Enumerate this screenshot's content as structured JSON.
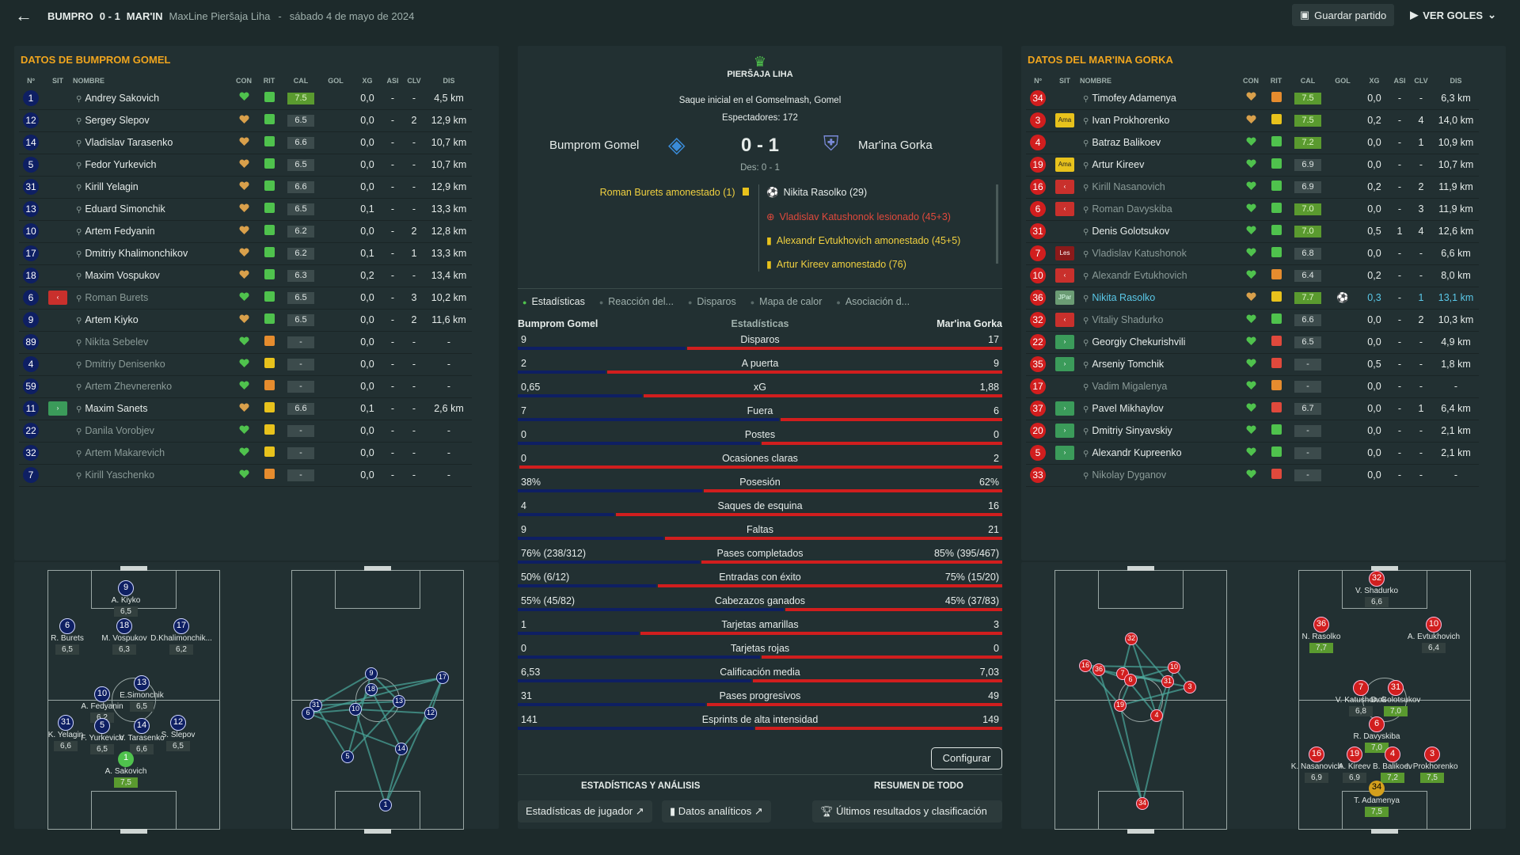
{
  "topbar": {
    "home": "BUMPRO",
    "score": "0 - 1",
    "away": "MAR'IN",
    "league": "MaxLine Pieršaja Liha",
    "sep": "-",
    "date": "sábado 4 de mayo de 2024",
    "save": "Guardar partido",
    "goals": "VER GOLES"
  },
  "left": {
    "title": "DATOS DE BUMPROM GOMEL",
    "cols": [
      "Nº",
      "SIT",
      "NOMBRE",
      "CON",
      "RIT",
      "CAL",
      "GOL",
      "XG",
      "ASI",
      "CLV",
      "DIS"
    ],
    "players": [
      {
        "n": "1",
        "sit": "",
        "name": "Andrey Sakovich",
        "rit": "g",
        "cal": "7.5",
        "calg": true,
        "gol": "",
        "xg": "0,0",
        "asi": "-",
        "clv": "-",
        "dis": "4,5 km",
        "sub": false
      },
      {
        "n": "12",
        "sit": "",
        "name": "Sergey Slepov",
        "rit": "g",
        "cal": "6.5",
        "gol": "",
        "xg": "0,0",
        "asi": "-",
        "clv": "2",
        "dis": "12,9 km",
        "sub": false
      },
      {
        "n": "14",
        "sit": "",
        "name": "Vladislav Tarasenko",
        "rit": "g",
        "cal": "6.6",
        "gol": "",
        "xg": "0,0",
        "asi": "-",
        "clv": "-",
        "dis": "10,7 km",
        "sub": false
      },
      {
        "n": "5",
        "sit": "",
        "name": "Fedor Yurkevich",
        "rit": "g",
        "cal": "6.5",
        "gol": "",
        "xg": "0,0",
        "asi": "-",
        "clv": "-",
        "dis": "10,7 km",
        "sub": false
      },
      {
        "n": "31",
        "sit": "",
        "name": "Kirill Yelagin",
        "rit": "g",
        "cal": "6.6",
        "gol": "",
        "xg": "0,0",
        "asi": "-",
        "clv": "-",
        "dis": "12,9 km",
        "sub": false
      },
      {
        "n": "13",
        "sit": "",
        "name": "Eduard Simonchik",
        "rit": "g",
        "cal": "6.5",
        "gol": "",
        "xg": "0,1",
        "asi": "-",
        "clv": "-",
        "dis": "13,3 km",
        "sub": false
      },
      {
        "n": "10",
        "sit": "",
        "name": "Artem Fedyanin",
        "rit": "g",
        "cal": "6.2",
        "gol": "",
        "xg": "0,0",
        "asi": "-",
        "clv": "2",
        "dis": "12,8 km",
        "sub": false
      },
      {
        "n": "17",
        "sit": "",
        "name": "Dmitriy Khalimonchikov",
        "rit": "g",
        "cal": "6.2",
        "gol": "",
        "xg": "0,1",
        "asi": "-",
        "clv": "1",
        "dis": "13,3 km",
        "sub": false
      },
      {
        "n": "18",
        "sit": "",
        "name": "Maxim Vospukov",
        "rit": "g",
        "cal": "6.3",
        "gol": "",
        "xg": "0,2",
        "asi": "-",
        "clv": "-",
        "dis": "13,4 km",
        "sub": false
      },
      {
        "n": "6",
        "sit": "out",
        "name": "Roman Burets",
        "rit": "g",
        "cal": "6.5",
        "gol": "",
        "xg": "0,0",
        "asi": "-",
        "clv": "3",
        "dis": "10,2 km",
        "sub": true
      },
      {
        "n": "9",
        "sit": "",
        "name": "Artem Kiyko",
        "rit": "g",
        "cal": "6.5",
        "gol": "",
        "xg": "0,0",
        "asi": "-",
        "clv": "2",
        "dis": "11,6 km",
        "sub": false
      },
      {
        "n": "89",
        "sit": "",
        "name": "Nikita Sebelev",
        "rit": "o",
        "cal": "-",
        "gol": "",
        "xg": "0,0",
        "asi": "-",
        "clv": "-",
        "dis": "-",
        "sub": true
      },
      {
        "n": "4",
        "sit": "",
        "name": "Dmitriy Denisenko",
        "rit": "y",
        "cal": "-",
        "gol": "",
        "xg": "0,0",
        "asi": "-",
        "clv": "-",
        "dis": "-",
        "sub": true
      },
      {
        "n": "59",
        "sit": "",
        "name": "Artem Zhevnerenko",
        "rit": "o",
        "cal": "-",
        "gol": "",
        "xg": "0,0",
        "asi": "-",
        "clv": "-",
        "dis": "-",
        "sub": true
      },
      {
        "n": "11",
        "sit": "in",
        "name": "Maxim Sanets",
        "rit": "y",
        "cal": "6.6",
        "gol": "",
        "xg": "0,1",
        "asi": "-",
        "clv": "-",
        "dis": "2,6 km",
        "sub": false
      },
      {
        "n": "22",
        "sit": "",
        "name": "Danila Vorobjev",
        "rit": "y",
        "cal": "-",
        "gol": "",
        "xg": "0,0",
        "asi": "-",
        "clv": "-",
        "dis": "-",
        "sub": true
      },
      {
        "n": "32",
        "sit": "",
        "name": "Artem Makarevich",
        "rit": "y",
        "cal": "-",
        "gol": "",
        "xg": "0,0",
        "asi": "-",
        "clv": "-",
        "dis": "-",
        "sub": true
      },
      {
        "n": "7",
        "sit": "",
        "name": "Kirill Yaschenko",
        "rit": "o",
        "cal": "-",
        "gol": "",
        "xg": "0,0",
        "asi": "-",
        "clv": "-",
        "dis": "-",
        "sub": true
      }
    ]
  },
  "right": {
    "title": "DATOS DEL MAR'INA GORKA",
    "players": [
      {
        "n": "34",
        "sit": "",
        "name": "Timofey Adamenya",
        "rit": "o",
        "cal": "7.5",
        "calg": true,
        "gol": "",
        "xg": "0,0",
        "asi": "-",
        "clv": "-",
        "dis": "6,3 km",
        "sub": false
      },
      {
        "n": "3",
        "sit": "ama",
        "name": "Ivan Prokhorenko",
        "rit": "y",
        "cal": "7.5",
        "calg": true,
        "gol": "",
        "xg": "0,2",
        "asi": "-",
        "clv": "4",
        "dis": "14,0 km",
        "sub": false
      },
      {
        "n": "4",
        "sit": "",
        "name": "Batraz Balikoev",
        "rit": "g",
        "cal": "7.2",
        "calg": true,
        "gol": "",
        "xg": "0,0",
        "asi": "-",
        "clv": "1",
        "dis": "10,9 km",
        "sub": false
      },
      {
        "n": "19",
        "sit": "ama",
        "name": "Artur Kireev",
        "rit": "g",
        "cal": "6.9",
        "gol": "",
        "xg": "0,0",
        "asi": "-",
        "clv": "-",
        "dis": "10,7 km",
        "sub": false
      },
      {
        "n": "16",
        "sit": "out",
        "name": "Kirill Nasanovich",
        "rit": "g",
        "cal": "6.9",
        "gol": "",
        "xg": "0,2",
        "asi": "-",
        "clv": "2",
        "dis": "11,9 km",
        "sub": true
      },
      {
        "n": "6",
        "sit": "out",
        "name": "Roman Davyskiba",
        "rit": "g",
        "cal": "7.0",
        "calg": true,
        "gol": "",
        "xg": "0,0",
        "asi": "-",
        "clv": "3",
        "dis": "11,9 km",
        "sub": true
      },
      {
        "n": "31",
        "sit": "",
        "name": "Denis Golotsukov",
        "rit": "g",
        "cal": "7.0",
        "calg": true,
        "gol": "",
        "xg": "0,5",
        "asi": "1",
        "clv": "4",
        "dis": "12,6 km",
        "sub": false
      },
      {
        "n": "7",
        "sit": "les",
        "name": "Vladislav Katushonok",
        "rit": "g",
        "cal": "6.8",
        "gol": "",
        "xg": "0,0",
        "asi": "-",
        "clv": "-",
        "dis": "6,6 km",
        "sub": true
      },
      {
        "n": "10",
        "sit": "out",
        "name": "Alexandr Evtukhovich",
        "rit": "o",
        "cal": "6.4",
        "gol": "",
        "xg": "0,2",
        "asi": "-",
        "clv": "-",
        "dis": "8,0 km",
        "sub": true
      },
      {
        "n": "36",
        "sit": "jpar",
        "name": "Nikita Rasolko",
        "rit": "y",
        "cal": "7.7",
        "calg": true,
        "gol": "⚽",
        "xg": "0,3",
        "asi": "-",
        "clv": "1",
        "dis": "13,1 km",
        "sub": false,
        "hl": true
      },
      {
        "n": "32",
        "sit": "out",
        "name": "Vitaliy Shadurko",
        "rit": "g",
        "cal": "6.6",
        "gol": "",
        "xg": "0,0",
        "asi": "-",
        "clv": "2",
        "dis": "10,3 km",
        "sub": true
      },
      {
        "n": "22",
        "sit": "in",
        "name": "Georgiy Chekurishvili",
        "rit": "r",
        "cal": "6.5",
        "gol": "",
        "xg": "0,0",
        "asi": "-",
        "clv": "-",
        "dis": "4,9 km",
        "sub": false
      },
      {
        "n": "35",
        "sit": "in",
        "name": "Arseniy Tomchik",
        "rit": "r",
        "cal": "-",
        "gol": "",
        "xg": "0,5",
        "asi": "-",
        "clv": "-",
        "dis": "1,8 km",
        "sub": false
      },
      {
        "n": "17",
        "sit": "",
        "name": "Vadim Migalenya",
        "rit": "o",
        "cal": "-",
        "gol": "",
        "xg": "0,0",
        "asi": "-",
        "clv": "-",
        "dis": "-",
        "sub": true
      },
      {
        "n": "37",
        "sit": "in",
        "name": "Pavel Mikhaylov",
        "rit": "r",
        "cal": "6.7",
        "gol": "",
        "xg": "0,0",
        "asi": "-",
        "clv": "1",
        "dis": "6,4 km",
        "sub": false
      },
      {
        "n": "20",
        "sit": "in",
        "name": "Dmitriy Sinyavskiy",
        "rit": "g",
        "cal": "-",
        "gol": "",
        "xg": "0,0",
        "asi": "-",
        "clv": "-",
        "dis": "2,1 km",
        "sub": false
      },
      {
        "n": "5",
        "sit": "in",
        "name": "Alexandr Kupreenko",
        "rit": "g",
        "cal": "-",
        "gol": "",
        "xg": "0,0",
        "asi": "-",
        "clv": "-",
        "dis": "2,1 km",
        "sub": false
      },
      {
        "n": "33",
        "sit": "",
        "name": "Nikolay Dyganov",
        "rit": "r",
        "cal": "-",
        "gol": "",
        "xg": "0,0",
        "asi": "-",
        "clv": "-",
        "dis": "-",
        "sub": true
      }
    ]
  },
  "match": {
    "league": "PIERŠAJA LIHA",
    "venue": "Saque inicial en el Gomselmash, Gomel",
    "spect": "Espectadores: 172",
    "home": "Bumprom Gomel",
    "away": "Mar'ina Gorka",
    "score": "0 - 1",
    "des": "Des: 0 - 1",
    "home_events": [
      "Roman Burets amonestado (1)"
    ],
    "away_events": [
      "Nikita Rasolko (29)",
      "Vladislav Katushonok lesionado (45+3)",
      "Alexandr Evtukhovich amonestado (45+5)",
      "Artur Kireev amonestado (76)"
    ]
  },
  "tabs": [
    "Estadísticas",
    "Reacción del...",
    "Disparos",
    "Mapa de calor",
    "Asociación d..."
  ],
  "stats_head": {
    "home": "Bumprom Gomel",
    "mid": "Estadísticas",
    "away": "Mar'ina Gorka"
  },
  "stats": [
    {
      "name": "Disparos",
      "h": "9",
      "a": "17",
      "hv": 9,
      "av": 17
    },
    {
      "name": "A puerta",
      "h": "2",
      "a": "9",
      "hv": 2,
      "av": 9
    },
    {
      "name": "xG",
      "h": "0,65",
      "a": "1,88",
      "hv": 0.65,
      "av": 1.88
    },
    {
      "name": "Fuera",
      "h": "7",
      "a": "6",
      "hv": 7,
      "av": 6
    },
    {
      "name": "Postes",
      "h": "0",
      "a": "0",
      "hv": 0,
      "av": 0
    },
    {
      "name": "Ocasiones claras",
      "h": "0",
      "a": "2",
      "hv": 0,
      "av": 2
    },
    {
      "name": "Posesión",
      "h": "38%",
      "a": "62%",
      "hv": 38,
      "av": 62
    },
    {
      "name": "Saques de esquina",
      "h": "4",
      "a": "16",
      "hv": 4,
      "av": 16
    },
    {
      "name": "Faltas",
      "h": "9",
      "a": "21",
      "hv": 9,
      "av": 21
    },
    {
      "name": "Pases completados",
      "h": "76% (238/312)",
      "a": "85% (395/467)",
      "hv": 238,
      "av": 395
    },
    {
      "name": "Entradas con éxito",
      "h": "50% (6/12)",
      "a": "75% (15/20)",
      "hv": 6,
      "av": 15
    },
    {
      "name": "Cabezazos ganados",
      "h": "55% (45/82)",
      "a": "45% (37/83)",
      "hv": 45,
      "av": 37
    },
    {
      "name": "Tarjetas amarillas",
      "h": "1",
      "a": "3",
      "hv": 1,
      "av": 3
    },
    {
      "name": "Tarjetas rojas",
      "h": "0",
      "a": "0",
      "hv": 0,
      "av": 0
    },
    {
      "name": "Calificación media",
      "h": "6,53",
      "a": "7,03",
      "hv": 6.53,
      "av": 7.03
    },
    {
      "name": "Pases progresivos",
      "h": "31",
      "a": "49",
      "hv": 31,
      "av": 49
    },
    {
      "name": "Esprints de alta intensidad",
      "h": "141",
      "a": "149",
      "hv": 141,
      "av": 149
    }
  ],
  "footer": {
    "configure": "Configurar",
    "stats_title": "ESTADÍSTICAS Y ANÁLISIS",
    "summary_title": "RESUMEN DE TODO",
    "player_stats": "Estadísticas de jugador",
    "analytics": "Datos analíticos",
    "results": "Últimos resultados y clasificación"
  },
  "left_form": [
    {
      "n": "9",
      "label": "A. Kiyko",
      "cal": "6,5"
    },
    {
      "n": "6",
      "label": "R. Burets",
      "cal": "6,5"
    },
    {
      "n": "18",
      "label": "M. Vospukov",
      "cal": "6,3"
    },
    {
      "n": "17",
      "label": "D.Khalimonchik...",
      "cal": "6,2"
    },
    {
      "n": "13",
      "label": "E.Simonchik",
      "cal": "6,5"
    },
    {
      "n": "10",
      "label": "A. Fedyanin",
      "cal": "6,2"
    },
    {
      "n": "31",
      "label": "K. Yelagin",
      "cal": "6,6"
    },
    {
      "n": "5",
      "label": "F. Yurkevich",
      "cal": "6,5"
    },
    {
      "n": "14",
      "label": "V. Tarasenko",
      "cal": "6,6"
    },
    {
      "n": "12",
      "label": "S. Slepov",
      "cal": "6,5"
    },
    {
      "n": "1",
      "label": "A. Sakovich",
      "cal": "7,5"
    }
  ],
  "right_form": [
    {
      "n": "32",
      "label": "V. Shadurko",
      "cal": "6,6"
    },
    {
      "n": "36",
      "label": "N. Rasolko",
      "cal": "7,7"
    },
    {
      "n": "10",
      "label": "A. Evtukhovich",
      "cal": "6,4"
    },
    {
      "n": "7",
      "label": "V. Katushonok",
      "cal": "6,8"
    },
    {
      "n": "31",
      "label": "D. Golotsukov",
      "cal": "7,0"
    },
    {
      "n": "6",
      "label": "R. Davyskiba",
      "cal": "7,0"
    },
    {
      "n": "16",
      "label": "K. Nasanovich",
      "cal": "6,9"
    },
    {
      "n": "19",
      "label": "A. Kireev",
      "cal": "6,9"
    },
    {
      "n": "4",
      "label": "B. Balikoev",
      "cal": "7,2"
    },
    {
      "n": "3",
      "label": "I. Prokhorenko",
      "cal": "7,5"
    },
    {
      "n": "34",
      "label": "T. Adamenya",
      "cal": "7,5"
    }
  ],
  "colors": {
    "home": "#0e1f63",
    "away": "#d11e1e",
    "accent": "#f0a51e",
    "good": "#4fc24d"
  }
}
